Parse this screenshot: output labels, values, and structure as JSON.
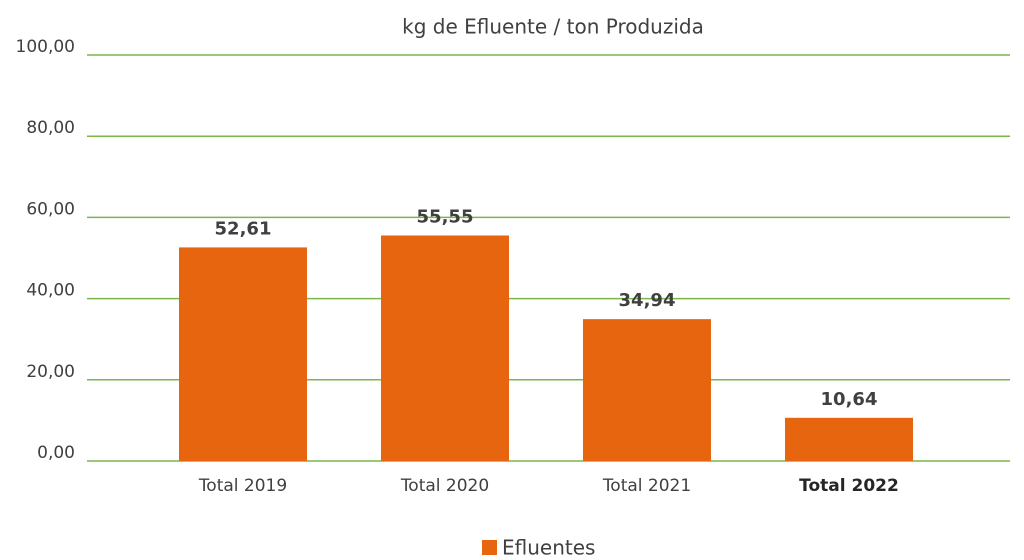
{
  "chart_data": {
    "type": "bar",
    "title": "kg de Efluente / ton Produzida",
    "categories": [
      "Total 2019",
      "Total 2020",
      "Total 2021",
      "Total 2022"
    ],
    "series": [
      {
        "name": "Efluentes",
        "color": "#e8650f",
        "values": [
          52.61,
          55.55,
          34.94,
          10.64
        ],
        "value_labels": [
          "52,61",
          "55,55",
          "34,94",
          "10,64"
        ]
      }
    ],
    "ylim": [
      0,
      100
    ],
    "yticks": [
      {
        "value": 0,
        "label": "0,00"
      },
      {
        "value": 20,
        "label": "20,00"
      },
      {
        "value": 40,
        "label": "40,00"
      },
      {
        "value": 60,
        "label": "60,00"
      },
      {
        "value": 80,
        "label": "80,00"
      },
      {
        "value": 100,
        "label": "100,00"
      }
    ],
    "grid": true,
    "grid_color": "#7ab648",
    "legend": "bottom"
  }
}
